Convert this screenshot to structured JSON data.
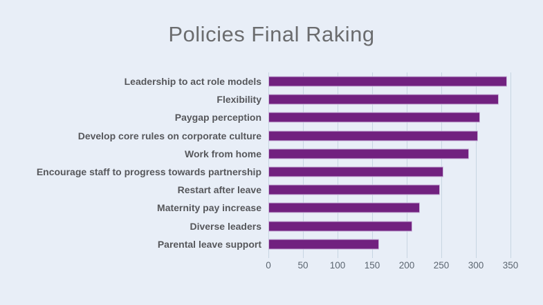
{
  "title": "Policies Final Raking",
  "chart_data": {
    "type": "bar",
    "orientation": "horizontal",
    "title": "Policies Final Raking",
    "categories": [
      "Leadership to act role models",
      "Flexibility",
      "Paygap perception",
      "Develop core rules on corporate culture",
      "Work from home",
      "Encourage staff to progress towards partnership",
      "Restart after leave",
      "Maternity pay increase",
      "Diverse leaders",
      "Parental leave support"
    ],
    "values": [
      345,
      333,
      306,
      303,
      290,
      253,
      248,
      219,
      208,
      160
    ],
    "xlabel": "",
    "ylabel": "",
    "xlim": [
      0,
      385
    ],
    "x_ticks": [
      0,
      50,
      100,
      150,
      200,
      250,
      300,
      350
    ],
    "grid": "vertical-only",
    "legend": "none",
    "colors": {
      "background": "#e8eef7",
      "bar_fill": "#71217f",
      "bar_border": "#c9b4d8",
      "gridline": "#c7d5e2",
      "title_text": "#6b6c6e",
      "category_text": "#56575b",
      "tick_text": "#5b6570"
    }
  }
}
